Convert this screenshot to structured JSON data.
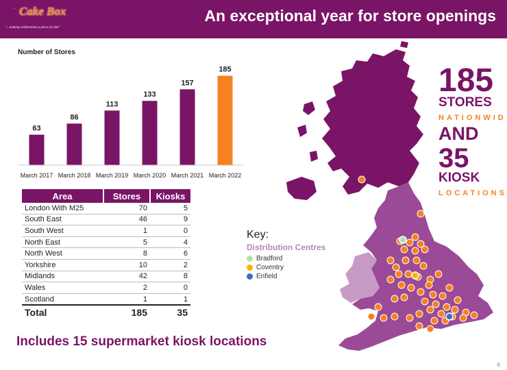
{
  "header": {
    "title": "An exceptional year for store openings",
    "logo_text": "Cake Box",
    "logo_tm": "™",
    "logo_tagline": "\"...making celebrations a piece of cake\""
  },
  "chart_data": {
    "type": "bar",
    "title": "Number of Stores",
    "categories": [
      "March 2017",
      "March 2018",
      "March 2019",
      "March 2020",
      "March 2021",
      "March 2022"
    ],
    "values": [
      63,
      86,
      113,
      133,
      157,
      185
    ],
    "colors": [
      "#7a1466",
      "#7a1466",
      "#7a1466",
      "#7a1466",
      "#7a1466",
      "#f58220"
    ],
    "ylim": [
      0,
      200
    ],
    "grid": false,
    "data_labels": true
  },
  "table": {
    "headers": [
      "Area",
      "Stores",
      "Kiosks"
    ],
    "rows": [
      {
        "area": "London With M25",
        "stores": "70",
        "kiosks": "5"
      },
      {
        "area": "South East",
        "stores": "46",
        "kiosks": "9"
      },
      {
        "area": "South West",
        "stores": "1",
        "kiosks": "0"
      },
      {
        "area": "North East",
        "stores": "5",
        "kiosks": "4"
      },
      {
        "area": "North West",
        "stores": "8",
        "kiosks": "6"
      },
      {
        "area": "Yorkshire",
        "stores": "10",
        "kiosks": "2"
      },
      {
        "area": "Midlands",
        "stores": "42",
        "kiosks": "8"
      },
      {
        "area": "Wales",
        "stores": "2",
        "kiosks": "0"
      },
      {
        "area": "Scotland",
        "stores": "1",
        "kiosks": "1"
      }
    ],
    "total": {
      "area": "Total",
      "stores": "185",
      "kiosks": "35"
    }
  },
  "stats": {
    "stores_count": "185",
    "stores_label": "STORES",
    "stores_sub": "NATIONWID",
    "and_label": "AND",
    "kiosk_count": "35",
    "kiosk_label": "KIOSK",
    "kiosk_sub": "LOCATIONS"
  },
  "key": {
    "title": "Key:",
    "subtitle": "Distribution Centres",
    "items": [
      {
        "label": "Bradford",
        "color": "#b8dcb0"
      },
      {
        "label": "Coventry",
        "color": "#f5b800"
      },
      {
        "label": "Enfield",
        "color": "#3a6fc4"
      }
    ]
  },
  "footer": {
    "note": "Includes 15 supermarket kiosk locations",
    "page": "6"
  },
  "colors": {
    "brand_purple": "#7a1466",
    "accent_orange": "#f58220",
    "map_england": "#9a4a96",
    "map_scotland": "#7a1466",
    "map_wales": "#c79ac6"
  }
}
